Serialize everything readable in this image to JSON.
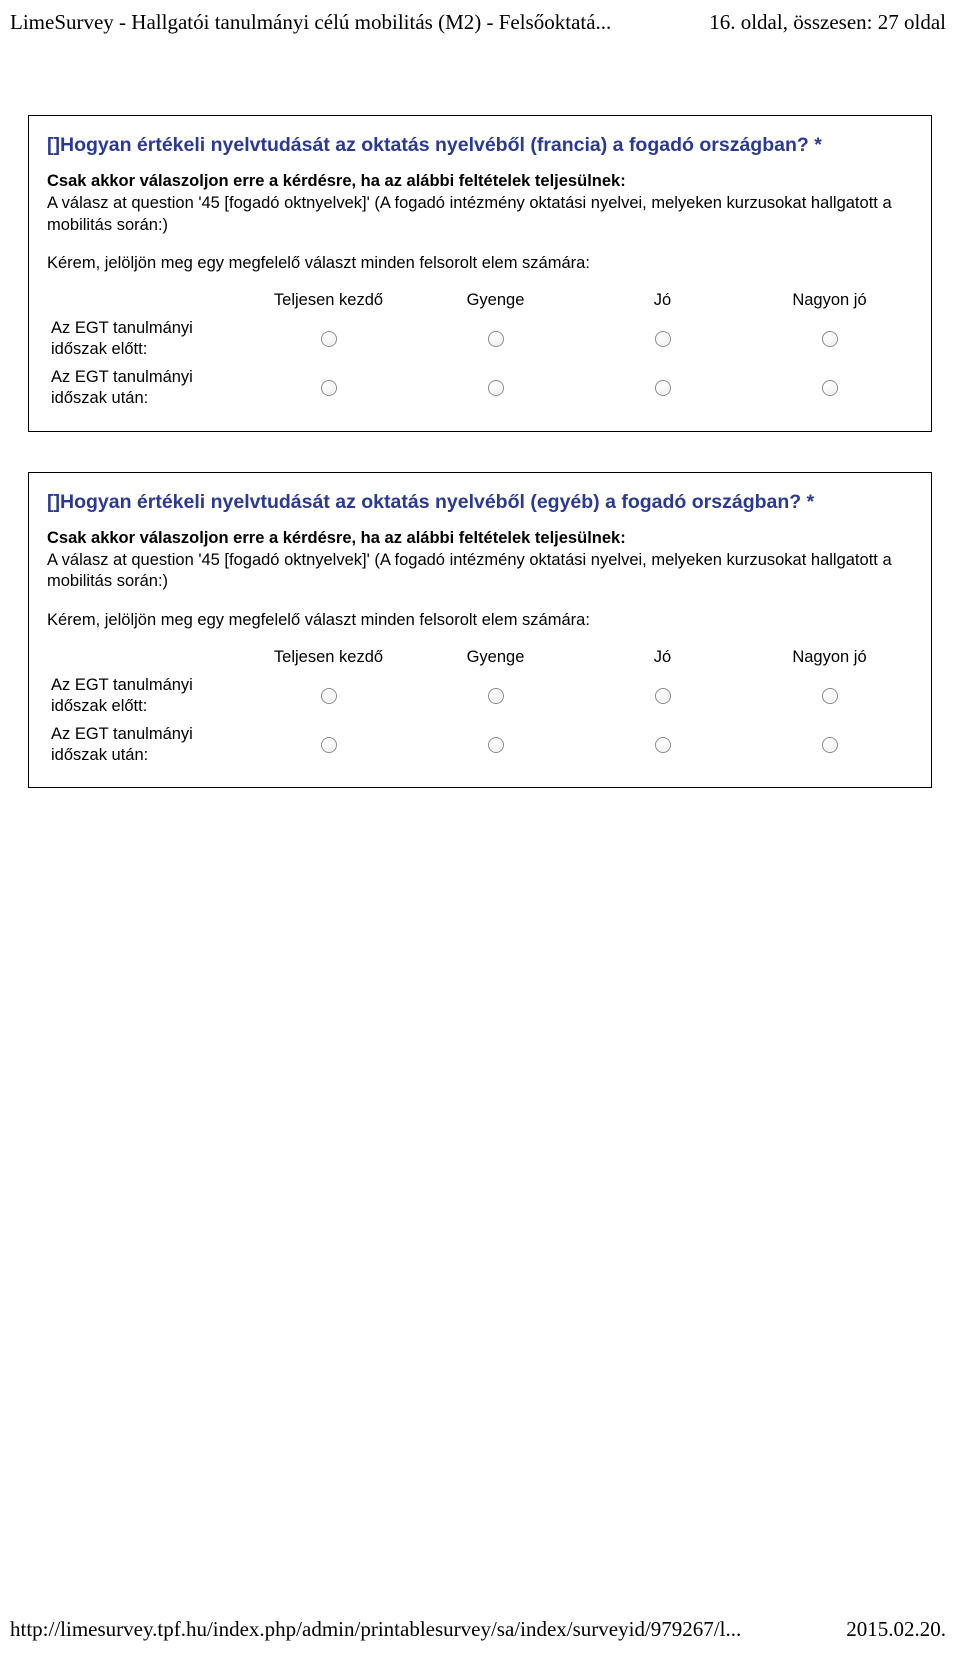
{
  "header": {
    "left": "LimeSurvey - Hallgatói tanulmányi célú mobilitás (M2) - Felsőoktatá...",
    "right": "16. oldal, összesen: 27 oldal"
  },
  "footer": {
    "left": "http://limesurvey.tpf.hu/index.php/admin/printablesurvey/sa/index/surveyid/979267/l...",
    "right": "2015.02.20."
  },
  "columns": [
    "Teljesen kezdő",
    "Gyenge",
    "Jó",
    "Nagyon jó"
  ],
  "rows": [
    "Az EGT tanulmányi időszak előtt:",
    "Az EGT tanulmányi időszak után:"
  ],
  "q1": {
    "title": "[]Hogyan értékeli nyelvtudását az oktatás nyelvéből (francia) a fogadó országban? *",
    "cond_bold": "Csak akkor válaszoljon erre a kérdésre, ha az alábbi feltételek teljesülnek:",
    "cond_detail": "A válasz at question '45 [fogadó oktnyelvek]' (A fogadó intézmény oktatási nyelvei, melyeken kurzusokat hallgatott a mobilitás során:)",
    "instruct": "Kérem, jelöljön meg egy megfelelő választ minden felsorolt elem számára:"
  },
  "q2": {
    "title": "[]Hogyan értékeli nyelvtudását az oktatás nyelvéből (egyéb) a fogadó országban? *",
    "cond_bold": "Csak akkor válaszoljon erre a kérdésre, ha az alábbi feltételek teljesülnek:",
    "cond_detail": "A válasz at question '45 [fogadó oktnyelvek]' (A fogadó intézmény oktatási nyelvei, melyeken kurzusokat hallgatott a mobilitás során:)",
    "instruct": "Kérem, jelöljön meg egy megfelelő választ minden felsorolt elem számára:"
  }
}
